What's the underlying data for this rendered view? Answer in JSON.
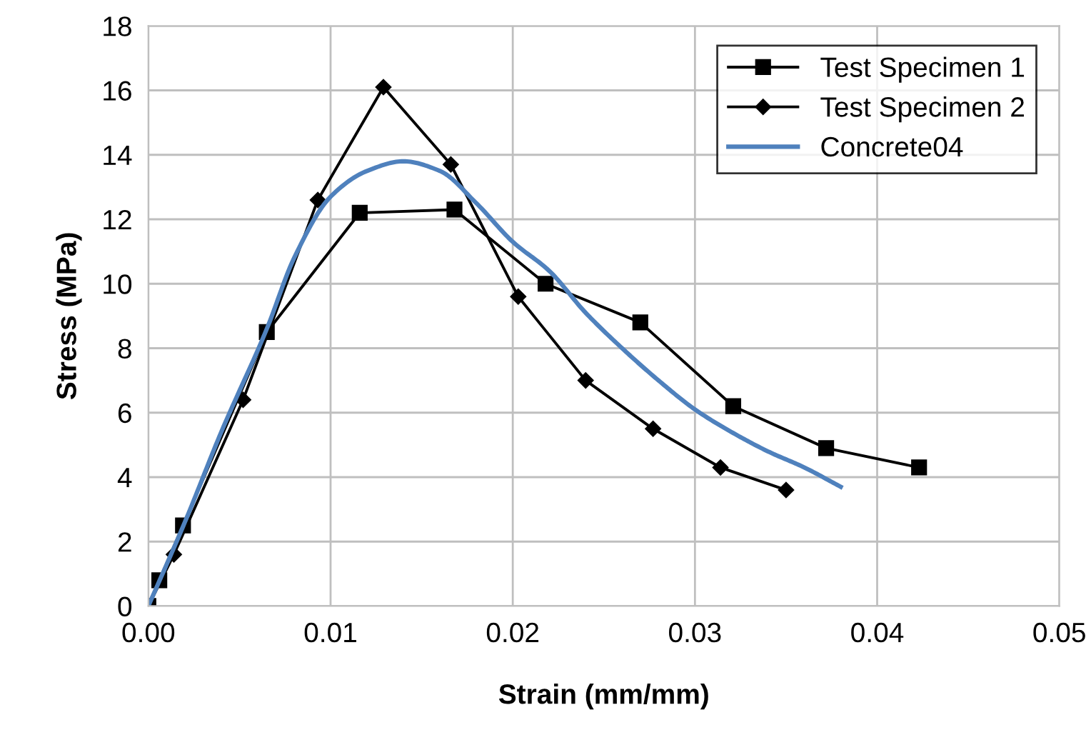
{
  "chart_data": {
    "type": "line",
    "xlabel": "Strain (mm/mm)",
    "ylabel": "Stress (MPa)",
    "xlim": [
      0,
      0.05
    ],
    "xticks": [
      {
        "value": 0,
        "label": "0.00"
      },
      {
        "value": 0.01,
        "label": "0.01"
      },
      {
        "value": 0.02,
        "label": "0.02"
      },
      {
        "value": 0.03,
        "label": "0.03"
      },
      {
        "value": 0.04,
        "label": "0.04"
      },
      {
        "value": 0.05,
        "label": "0.05"
      }
    ],
    "ylim": [
      0,
      18
    ],
    "yticks": [
      0,
      2,
      4,
      6,
      8,
      10,
      12,
      14,
      16,
      18
    ],
    "grid": true,
    "legend": "top right",
    "series": [
      {
        "name": "Test Specimen 1",
        "color": "#000000",
        "marker": "square",
        "x": [
          0,
          0.0006,
          0.0019,
          0.0065,
          0.0116,
          0.0168,
          0.0218,
          0.027,
          0.0321,
          0.0372,
          0.0423
        ],
        "values": [
          0,
          0.8,
          2.5,
          8.5,
          12.2,
          12.3,
          10,
          8.8,
          6.2,
          4.9,
          4.3
        ]
      },
      {
        "name": "Test Specimen 2",
        "color": "#000000",
        "marker": "diamond",
        "x": [
          0,
          0.0014,
          0.0052,
          0.0093,
          0.0129,
          0.0166,
          0.0203,
          0.024,
          0.0277,
          0.0314,
          0.035
        ],
        "values": [
          0,
          1.6,
          6.4,
          12.6,
          16.1,
          13.7,
          9.6,
          7,
          5.5,
          4.3,
          3.6
        ]
      },
      {
        "name": "Concrete04",
        "color": "#4f81bd",
        "marker": "none",
        "x": [
          0,
          0.002,
          0.004,
          0.0065,
          0.008,
          0.01,
          0.012,
          0.014,
          0.016,
          0.018,
          0.02,
          0.022,
          0.024,
          0.026,
          0.028,
          0.03,
          0.032,
          0.034,
          0.036,
          0.038
        ],
        "values": [
          0,
          2.6,
          5.4,
          8.6,
          10.8,
          12.7,
          13.5,
          13.8,
          13.5,
          12.5,
          11.3,
          10.4,
          9.1,
          8,
          7,
          6.1,
          5.4,
          4.8,
          4.3,
          3.7
        ]
      }
    ]
  }
}
